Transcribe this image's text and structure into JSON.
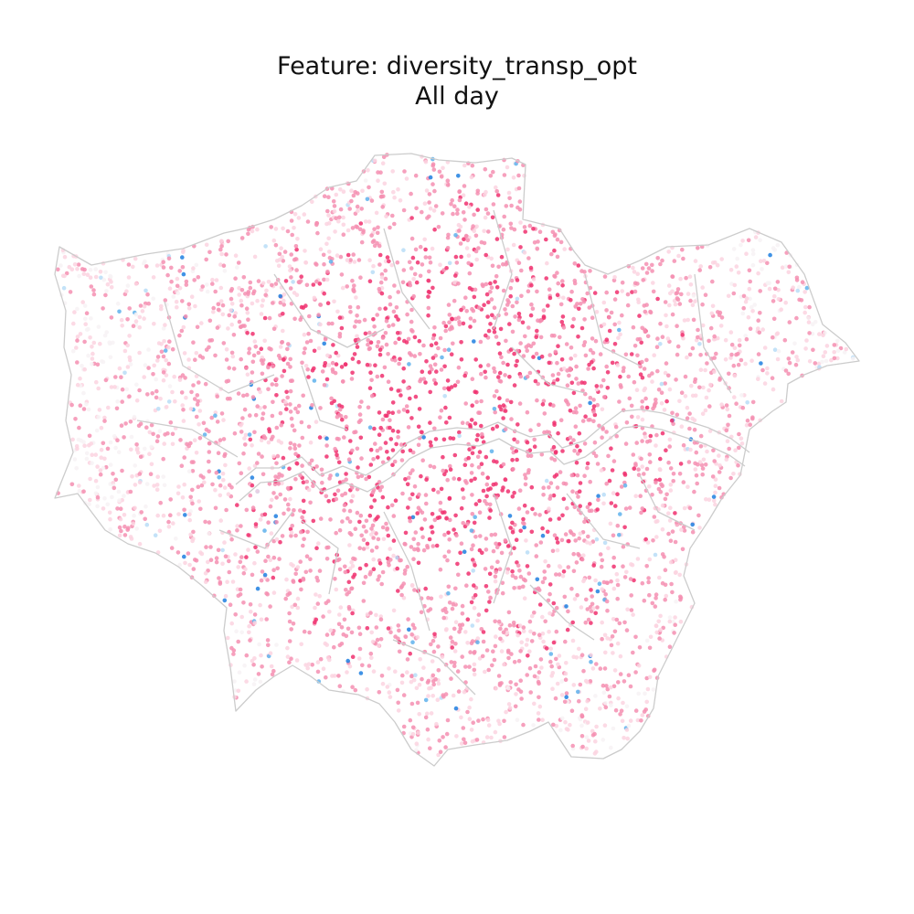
{
  "title": {
    "line1": "Feature: diversity_transp_opt",
    "line2": "All day"
  },
  "map": {
    "region": "Greater London",
    "point_color_scale": {
      "high": "#f0306e",
      "mid": "#f58fb1",
      "low": "#fbd3e1",
      "neutral": "#f7f2f5",
      "below_low": "#b8ddf7",
      "below_mid": "#5fb1ec",
      "below_high": "#1f7fe0"
    },
    "boundary_color": "#cccccc",
    "background_color": "#ffffff"
  }
}
